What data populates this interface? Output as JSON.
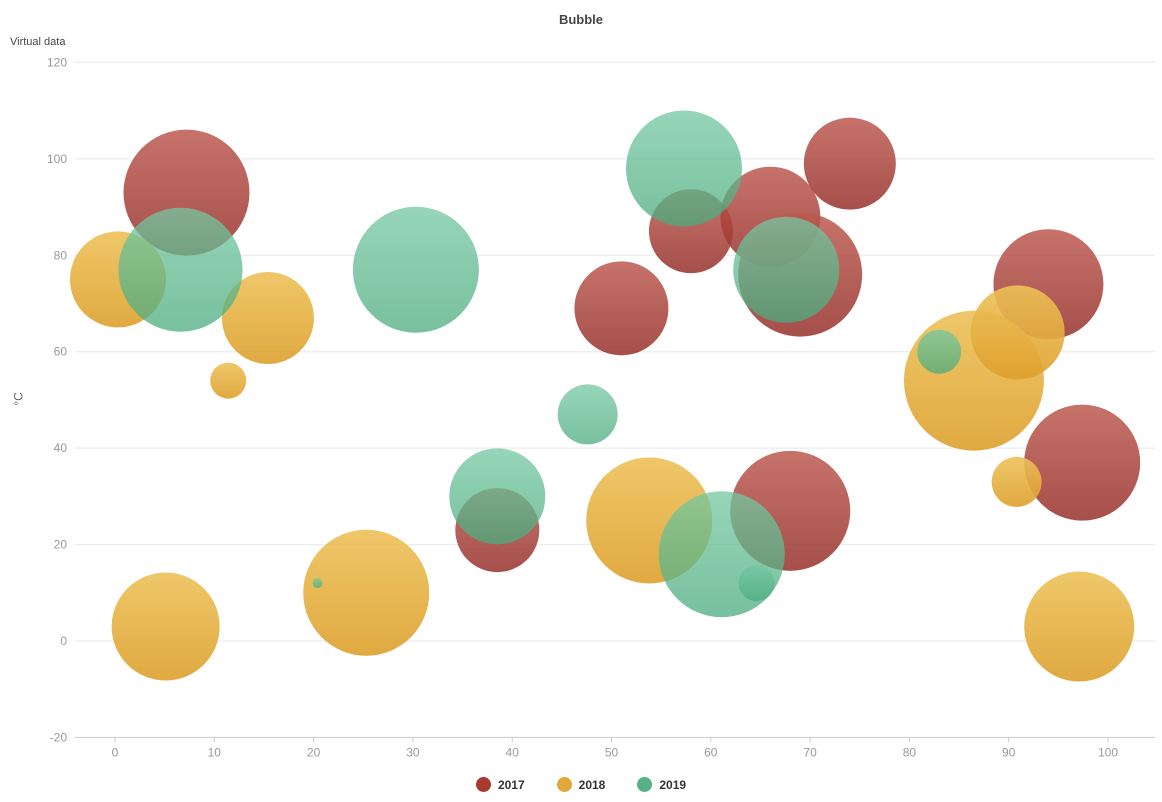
{
  "header": {
    "title": "Bubble",
    "subtitle": "Virtual data"
  },
  "chart_data": {
    "type": "scatter",
    "title": "Bubble",
    "subtitle": "Virtual data",
    "xlabel": "",
    "ylabel": "°C",
    "xlim": [
      -4,
      105
    ],
    "ylim": [
      -20,
      120
    ],
    "x_ticks": [
      0,
      10,
      20,
      30,
      40,
      50,
      60,
      70,
      80,
      90,
      100
    ],
    "y_ticks": [
      120,
      100,
      80,
      60,
      40,
      20,
      0,
      -20
    ],
    "grid": true,
    "legend_position": "bottom",
    "point_format": "[x, y_celsius, bubble_radius_px]",
    "series": [
      {
        "name": "2017",
        "color": "#a63a2e",
        "gradient": [
          "#bd5a50",
          "#96302b"
        ],
        "opacity": 0.85,
        "points": [
          [
            7.2,
            93,
            63
          ],
          [
            38.5,
            23,
            42
          ],
          [
            51,
            69,
            47
          ],
          [
            58,
            85,
            42
          ],
          [
            66,
            88,
            50
          ],
          [
            69,
            76,
            62
          ],
          [
            68,
            27,
            60
          ],
          [
            74,
            99,
            46
          ],
          [
            94,
            74,
            55
          ],
          [
            97.4,
            37,
            58
          ]
        ]
      },
      {
        "name": "2018",
        "color": "#e2a63a",
        "gradient": [
          "#edc159",
          "#dda02c"
        ],
        "opacity": 0.9,
        "points": [
          [
            0.3,
            75,
            48
          ],
          [
            5.1,
            3,
            54
          ],
          [
            11.4,
            54,
            18
          ],
          [
            15.4,
            67,
            46
          ],
          [
            25.3,
            10,
            63
          ],
          [
            53.8,
            25,
            63
          ],
          [
            86.5,
            54,
            70
          ],
          [
            90.9,
            64,
            47
          ],
          [
            90.8,
            33,
            25
          ],
          [
            97.1,
            3,
            55
          ]
        ]
      },
      {
        "name": "2019",
        "color": "#57b184",
        "gradient": [
          "#74c8a1",
          "#4aab7d"
        ],
        "opacity": 0.75,
        "points": [
          [
            6.6,
            77,
            62
          ],
          [
            20.4,
            12,
            5
          ],
          [
            30.3,
            77,
            63
          ],
          [
            38.5,
            30,
            48
          ],
          [
            47.6,
            47,
            30
          ],
          [
            57.3,
            98,
            58
          ],
          [
            61.1,
            18,
            63
          ],
          [
            64.6,
            12,
            18
          ],
          [
            67.6,
            77,
            53
          ],
          [
            83,
            60,
            22
          ]
        ]
      }
    ]
  }
}
